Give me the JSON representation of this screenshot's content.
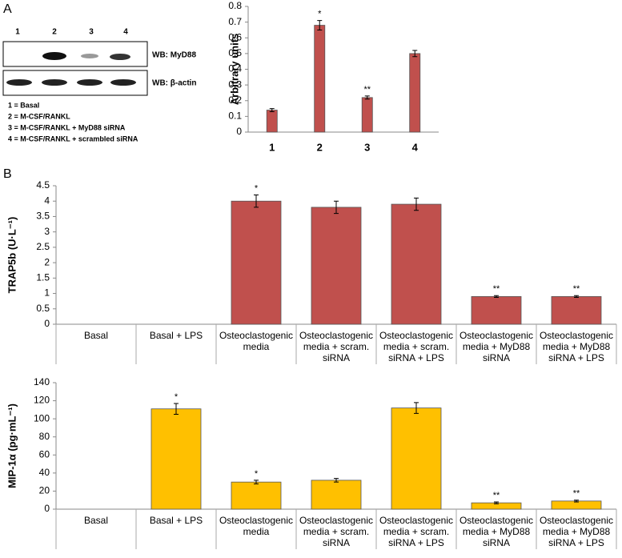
{
  "panel_labels": [
    "A",
    "B"
  ],
  "blot": {
    "lanes": [
      "1",
      "2",
      "3",
      "4"
    ],
    "rows": [
      "WB: MyD88",
      "WB: β-actin"
    ]
  },
  "key": [
    "1 = Basal",
    "2 = M-CSF/RANKL",
    "3 = M-CSF/RANKL + MyD88 siRNA",
    "4 = M-CSF/RANKL + scrambled siRNA"
  ],
  "chart_data": [
    {
      "type": "bar",
      "y_label": "Arbitrary units",
      "categories": [
        "1",
        "2",
        "3",
        "4"
      ],
      "values": [
        0.14,
        0.68,
        0.22,
        0.5
      ],
      "errors": [
        0.01,
        0.03,
        0.01,
        0.02
      ],
      "annotations": [
        null,
        "*",
        "**",
        null
      ],
      "color": "#c0504d",
      "ylim": [
        0,
        0.8
      ],
      "yticks": [
        0,
        0.1,
        0.2,
        0.3,
        0.4,
        0.5,
        0.6,
        0.7,
        0.8
      ]
    },
    {
      "type": "bar",
      "y_label": "TRAP5b (U·L⁻¹)",
      "categories": [
        "Basal",
        "Basal + LPS",
        "Osteoclastogenic media",
        "Osteoclastogenic media + scram. siRNA",
        "Osteoclastogenic media + scram. siRNA + LPS",
        "Osteoclastogenic media + MyD88 siRNA",
        "Osteoclastogenic media + MyD88 siRNA + LPS"
      ],
      "values": [
        null,
        null,
        4.0,
        3.8,
        3.9,
        0.9,
        0.9
      ],
      "errors": [
        null,
        null,
        0.2,
        0.2,
        0.2,
        0.03,
        0.03
      ],
      "annotations": [
        null,
        null,
        "*",
        null,
        null,
        "**",
        "**"
      ],
      "color": "#c0504d",
      "ylim": [
        0,
        4.5
      ],
      "yticks": [
        0,
        0.5,
        1,
        1.5,
        2,
        2.5,
        3,
        3.5,
        4,
        4.5
      ]
    },
    {
      "type": "bar",
      "y_label": "MIP-1α (pg·mL⁻¹)",
      "categories": [
        "Basal",
        "Basal + LPS",
        "Osteoclastogenic media",
        "Osteoclastogenic media + scram. siRNA",
        "Osteoclastogenic media + scram. siRNA + LPS",
        "Osteoclastogenic media + MyD88 siRNA",
        "Osteoclastogenic media + MyD88 siRNA + LPS"
      ],
      "values": [
        null,
        111,
        30,
        32,
        112,
        7,
        9
      ],
      "errors": [
        null,
        6,
        2,
        2,
        6,
        1,
        1
      ],
      "annotations": [
        null,
        "*",
        "*",
        null,
        null,
        "**",
        "**"
      ],
      "color": "#ffc000",
      "ylim": [
        0,
        140
      ],
      "yticks": [
        0,
        20,
        40,
        60,
        80,
        100,
        120,
        140
      ]
    }
  ]
}
